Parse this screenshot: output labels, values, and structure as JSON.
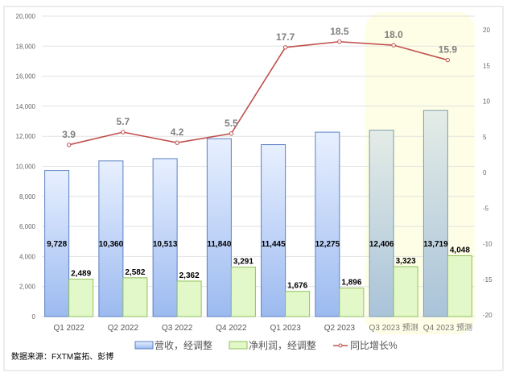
{
  "chart_data": {
    "type": "bar",
    "categories": [
      "Q1 2022",
      "Q2 2022",
      "Q3 2022",
      "Q4 2022",
      "Q1 2023",
      "Q2 2023",
      "Q3 2023 预测",
      "Q4 2023 预测"
    ],
    "series": [
      {
        "name": "营收，经调整",
        "type": "bar",
        "axis": "left",
        "values": [
          9728,
          10360,
          10513,
          11840,
          11445,
          12275,
          12406,
          13719
        ],
        "labels": [
          "9,728",
          "10,360",
          "10,513",
          "11,840",
          "11,445",
          "12,275",
          "12,406",
          "13,719"
        ]
      },
      {
        "name": "净利润，经调整",
        "type": "bar",
        "axis": "left",
        "values": [
          2489,
          2582,
          2362,
          3291,
          1676,
          1896,
          3323,
          4048
        ],
        "labels": [
          "2,489",
          "2,582",
          "2,362",
          "3,291",
          "1,676",
          "1,896",
          "3,323",
          "4,048"
        ]
      },
      {
        "name": "同比增长%",
        "type": "line",
        "axis": "right",
        "values": [
          3.9,
          5.7,
          4.2,
          5.5,
          17.7,
          18.5,
          18.0,
          15.9
        ],
        "labels": [
          "3.9",
          "5.7",
          "4.2",
          "5.5",
          "17.7",
          "18.5",
          "18.0",
          "15.9"
        ]
      }
    ],
    "left_axis": {
      "ylim": [
        0,
        20000
      ],
      "ticks": [
        "0",
        "2,000",
        "4,000",
        "6,000",
        "8,000",
        "10,000",
        "12,000",
        "14,000",
        "16,000",
        "18,000",
        "20,000"
      ]
    },
    "right_axis": {
      "ylim": [
        -20,
        20
      ],
      "ticks": [
        "-20",
        "-15",
        "-10",
        "-5",
        "0",
        "5",
        "10",
        "15",
        "20"
      ]
    },
    "highlighted_categories": [
      "Q3 2023 预测",
      "Q4 2023 预测"
    ],
    "grid": true,
    "legend": "bottom",
    "source_note": "数据来源：FXTM富拓、彭博",
    "colors": {
      "revenue_fill_top": "#e6eeff",
      "revenue_fill_bottom": "#9dbbf0",
      "revenue_stroke": "#5b7fc4",
      "profit_fill": "#e3f8c8",
      "profit_stroke": "#8fc25a",
      "line": "#c0504d",
      "highlight": "#fefee6",
      "grid": "#e2e2e2"
    }
  }
}
